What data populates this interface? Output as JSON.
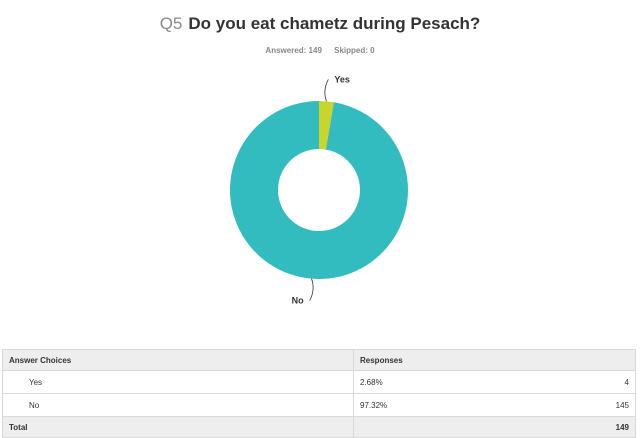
{
  "question": {
    "number": "Q5",
    "text": "Do you eat chametz during Pesach?",
    "answered": "Answered: 149",
    "skipped": "Skipped: 0"
  },
  "colors": {
    "yes": "#c8d52b",
    "no": "#33bcbf"
  },
  "chart_data": {
    "type": "pie",
    "donut": true,
    "categories": [
      "Yes",
      "No"
    ],
    "values": [
      2.68,
      97.32
    ],
    "title": "Do you eat chametz during Pesach?"
  },
  "table": {
    "headers": {
      "choices": "Answer Choices",
      "responses": "Responses"
    },
    "rows": [
      {
        "choice": "Yes",
        "percent": "2.68%",
        "count": "4"
      },
      {
        "choice": "No",
        "percent": "97.32%",
        "count": "145"
      }
    ],
    "total": {
      "label": "Total",
      "count": "149"
    }
  }
}
